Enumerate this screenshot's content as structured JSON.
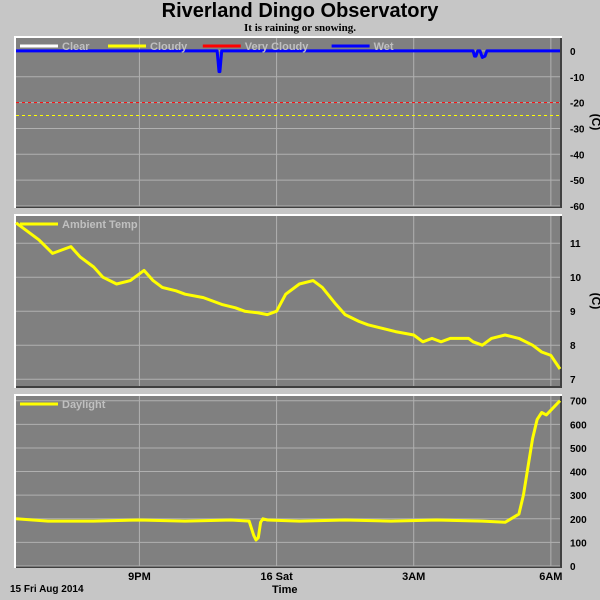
{
  "header": {
    "title": "Riverland Dingo Observatory",
    "subtitle": "It is raining or snowing."
  },
  "footer": {
    "date": "15 Fri Aug 2014",
    "xlabel": "Time"
  },
  "colors": {
    "plot_bg": "#808080",
    "page_bg": "#c6c6c6",
    "grid": "#b0b0b0",
    "clear": "#ffffff",
    "cloudy": "#ffff00",
    "very_cloudy": "#ff0000",
    "wet": "#0000ff",
    "temp": "#ffff00",
    "daylight": "#ffff00"
  },
  "chart_data": [
    {
      "type": "line",
      "id": "sky",
      "title": "",
      "ylabel": "(C)",
      "ylim": [
        -60,
        5
      ],
      "yticks": [
        0,
        -10,
        -20,
        -30,
        -40,
        -50,
        -60
      ],
      "x_range": [
        18.3,
        30.2
      ],
      "xticks": [
        {
          "x": 21,
          "label": "9PM"
        },
        {
          "x": 24,
          "label": "16 Sat"
        },
        {
          "x": 27,
          "label": "3AM"
        },
        {
          "x": 30,
          "label": "6AM"
        }
      ],
      "grid": true,
      "legend": [
        {
          "name": "Clear",
          "color": "#ffffff"
        },
        {
          "name": "Cloudy",
          "color": "#ffff00"
        },
        {
          "name": "Very Cloudy",
          "color": "#ff0000"
        },
        {
          "name": "Wet",
          "color": "#0000ff"
        }
      ],
      "thresholds": [
        {
          "series": "Very Cloudy",
          "value": -20,
          "color": "#ff0000"
        },
        {
          "series": "Cloudy",
          "value": -25,
          "color": "#ffff00"
        }
      ],
      "series": [
        {
          "name": "Wet",
          "color": "#0000ff",
          "x": [
            18.3,
            22.7,
            22.72,
            22.74,
            22.76,
            22.78,
            22.8,
            28.3,
            28.33,
            28.36,
            28.4,
            28.45,
            28.5,
            28.56,
            28.6,
            30.2
          ],
          "y": [
            0,
            0,
            -4,
            -8,
            -8,
            -4,
            0,
            0,
            -2,
            -2,
            0,
            0,
            -2.5,
            -2,
            0,
            0
          ]
        }
      ]
    },
    {
      "type": "line",
      "id": "ambient",
      "title": "",
      "ylabel": "(C)",
      "ylim": [
        6.8,
        11.8
      ],
      "yticks": [
        7,
        8,
        9,
        10,
        11
      ],
      "x_range": [
        18.3,
        30.2
      ],
      "xticks": [
        {
          "x": 21,
          "label": "9PM"
        },
        {
          "x": 24,
          "label": "16 Sat"
        },
        {
          "x": 27,
          "label": "3AM"
        },
        {
          "x": 30,
          "label": "6AM"
        }
      ],
      "grid": true,
      "legend": [
        {
          "name": "Ambient Temp",
          "color": "#ffff00"
        }
      ],
      "series": [
        {
          "name": "Ambient Temp",
          "color": "#ffff00",
          "x": [
            18.3,
            18.5,
            18.8,
            19.1,
            19.3,
            19.5,
            19.7,
            20.0,
            20.2,
            20.5,
            20.8,
            21.1,
            21.3,
            21.5,
            21.8,
            22.0,
            22.4,
            22.6,
            22.8,
            23.1,
            23.3,
            23.6,
            23.8,
            24.0,
            24.2,
            24.5,
            24.8,
            25.0,
            25.3,
            25.5,
            25.8,
            26.0,
            26.3,
            26.6,
            27.0,
            27.2,
            27.4,
            27.6,
            27.8,
            28.0,
            28.2,
            28.3,
            28.5,
            28.7,
            29.0,
            29.3,
            29.6,
            29.8,
            30.0,
            30.2
          ],
          "y": [
            11.6,
            11.4,
            11.1,
            10.7,
            10.8,
            10.9,
            10.6,
            10.3,
            10.0,
            9.8,
            9.9,
            10.2,
            9.9,
            9.7,
            9.6,
            9.5,
            9.4,
            9.3,
            9.2,
            9.1,
            9.0,
            8.95,
            8.9,
            9.0,
            9.5,
            9.8,
            9.9,
            9.7,
            9.2,
            8.9,
            8.7,
            8.6,
            8.5,
            8.4,
            8.3,
            8.1,
            8.2,
            8.1,
            8.2,
            8.2,
            8.2,
            8.1,
            8.0,
            8.2,
            8.3,
            8.2,
            8.0,
            7.8,
            7.7,
            7.3
          ]
        }
      ]
    },
    {
      "type": "line",
      "id": "daylight",
      "title": "",
      "ylabel": "",
      "ylim": [
        0,
        720
      ],
      "yticks": [
        0,
        100,
        200,
        300,
        400,
        500,
        600,
        700
      ],
      "x_range": [
        18.3,
        30.2
      ],
      "xticks": [
        {
          "x": 21,
          "label": "9PM"
        },
        {
          "x": 24,
          "label": "16 Sat"
        },
        {
          "x": 27,
          "label": "3AM"
        },
        {
          "x": 30,
          "label": "6AM"
        }
      ],
      "grid": true,
      "legend": [
        {
          "name": "Daylight",
          "color": "#ffff00"
        }
      ],
      "series": [
        {
          "name": "Daylight",
          "color": "#ffff00",
          "x": [
            18.3,
            19.0,
            20.0,
            21.0,
            22.0,
            23.0,
            23.4,
            23.5,
            23.55,
            23.6,
            23.65,
            23.7,
            23.8,
            24.5,
            25.5,
            26.5,
            27.5,
            28.5,
            29.0,
            29.3,
            29.4,
            29.5,
            29.6,
            29.7,
            29.8,
            29.9,
            30.0,
            30.2
          ],
          "y": [
            200,
            190,
            190,
            195,
            190,
            195,
            190,
            130,
            110,
            120,
            185,
            200,
            195,
            190,
            195,
            190,
            195,
            190,
            185,
            220,
            300,
            420,
            540,
            620,
            650,
            640,
            660,
            700
          ]
        }
      ]
    }
  ]
}
